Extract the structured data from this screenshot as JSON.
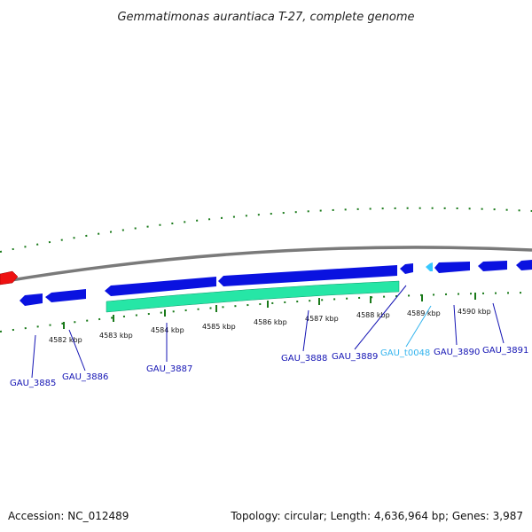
{
  "title": "Gemmatimonas aurantiaca T-27, complete genome",
  "accession": "Accession: NC_012489",
  "topology": "Topology: circular; Length: 4,636,964 bp; Genes: 3,987",
  "colors": {
    "backbone": "#808080",
    "cds": "#0a12e0",
    "rrna": "#26e6a6",
    "trna": "#36c8ff",
    "highlight": "#ee1111",
    "tick": "#1a7a1a",
    "gene_label": "#1414b4",
    "trna_label": "#33b4ee"
  },
  "scale": {
    "unit": "kbp",
    "ticks": [
      {
        "label": "4582 kbp"
      },
      {
        "label": "4583 kbp"
      },
      {
        "label": "4584 kbp"
      },
      {
        "label": "4585 kbp"
      },
      {
        "label": "4586 kbp"
      },
      {
        "label": "4587 kbp"
      },
      {
        "label": "4588 kbp"
      },
      {
        "label": "4589 kbp"
      },
      {
        "label": "4590 kbp"
      }
    ]
  },
  "features": [
    {
      "name": "GAU_3885",
      "type": "CDS",
      "strand": "-",
      "color": "#1414b4"
    },
    {
      "name": "GAU_3886",
      "type": "CDS",
      "strand": "-",
      "color": "#1414b4"
    },
    {
      "name": "GAU_3887",
      "type": "rRNA",
      "strand": "+",
      "color": "#1414b4"
    },
    {
      "name": "GAU_3888",
      "type": "CDS",
      "strand": "+",
      "color": "#1414b4"
    },
    {
      "name": "GAU_3889",
      "type": "CDS",
      "strand": "-",
      "color": "#1414b4"
    },
    {
      "name": "GAU_t0048",
      "type": "tRNA",
      "strand": "-",
      "color": "#33b4ee"
    },
    {
      "name": "GAU_3890",
      "type": "CDS",
      "strand": "+",
      "color": "#1414b4"
    },
    {
      "name": "GAU_3891",
      "type": "CDS",
      "strand": "-",
      "color": "#1414b4"
    }
  ]
}
